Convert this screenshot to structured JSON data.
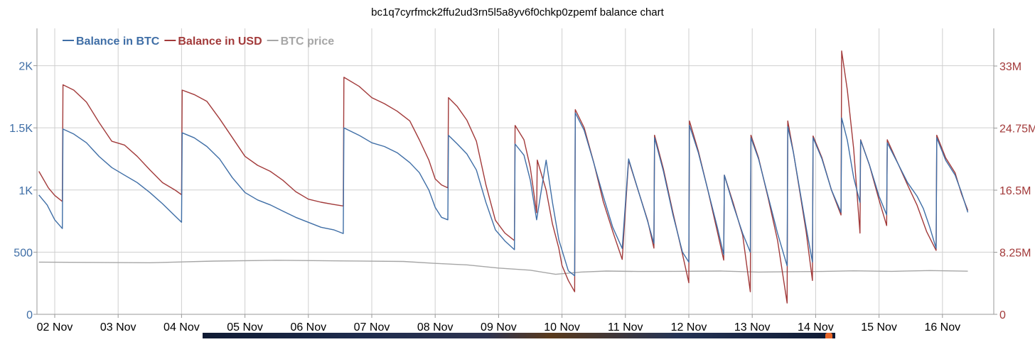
{
  "chart_data": {
    "type": "line",
    "title": "bc1q7cyrfmck2ffu2ud3rn5l5a8yv6f0chkp0zpemf balance chart",
    "x_ticks": [
      "02 Nov",
      "03 Nov",
      "04 Nov",
      "05 Nov",
      "06 Nov",
      "07 Nov",
      "08 Nov",
      "09 Nov",
      "10 Nov",
      "11 Nov",
      "12 Nov",
      "13 Nov",
      "14 Nov",
      "15 Nov",
      "16 Nov"
    ],
    "y_left": {
      "ticks": [
        "0",
        "500",
        "1K",
        "1.5K",
        "2K"
      ],
      "values": [
        0,
        500,
        1000,
        1500,
        2000
      ],
      "range": [
        0,
        2300
      ],
      "color": "#3f6ea6"
    },
    "y_right": {
      "ticks": [
        "0",
        "8.25M",
        "16.5M",
        "24.75M",
        "33M"
      ],
      "values": [
        0,
        8250000,
        16500000,
        24750000,
        33000000
      ],
      "range": [
        0,
        38000000
      ],
      "color": "#a23a3a"
    },
    "legend_placement": "top-left",
    "grid": true,
    "series": [
      {
        "name": "Balance in BTC",
        "axis": "left",
        "color": "#3f6ea6",
        "points": [
          [
            1.75,
            960
          ],
          [
            1.88,
            880
          ],
          [
            2.0,
            760
          ],
          [
            2.12,
            690
          ],
          [
            2.13,
            1490
          ],
          [
            2.3,
            1450
          ],
          [
            2.5,
            1380
          ],
          [
            2.7,
            1270
          ],
          [
            2.9,
            1180
          ],
          [
            3.1,
            1120
          ],
          [
            3.3,
            1060
          ],
          [
            3.5,
            980
          ],
          [
            3.7,
            890
          ],
          [
            3.9,
            790
          ],
          [
            4.0,
            740
          ],
          [
            4.01,
            1460
          ],
          [
            4.2,
            1420
          ],
          [
            4.4,
            1350
          ],
          [
            4.6,
            1250
          ],
          [
            4.8,
            1100
          ],
          [
            5.0,
            980
          ],
          [
            5.2,
            920
          ],
          [
            5.4,
            880
          ],
          [
            5.6,
            830
          ],
          [
            5.8,
            780
          ],
          [
            6.0,
            740
          ],
          [
            6.2,
            700
          ],
          [
            6.4,
            680
          ],
          [
            6.55,
            650
          ],
          [
            6.56,
            1500
          ],
          [
            6.8,
            1440
          ],
          [
            7.0,
            1380
          ],
          [
            7.2,
            1350
          ],
          [
            7.4,
            1300
          ],
          [
            7.6,
            1220
          ],
          [
            7.75,
            1140
          ],
          [
            7.9,
            1000
          ],
          [
            8.0,
            860
          ],
          [
            8.1,
            780
          ],
          [
            8.2,
            760
          ],
          [
            8.21,
            1440
          ],
          [
            8.35,
            1370
          ],
          [
            8.5,
            1290
          ],
          [
            8.65,
            1160
          ],
          [
            8.8,
            900
          ],
          [
            8.95,
            680
          ],
          [
            9.1,
            590
          ],
          [
            9.25,
            520
          ],
          [
            9.26,
            1370
          ],
          [
            9.4,
            1280
          ],
          [
            9.5,
            1080
          ],
          [
            9.6,
            760
          ],
          [
            9.75,
            1240
          ],
          [
            9.85,
            900
          ],
          [
            9.95,
            600
          ],
          [
            10.1,
            350
          ],
          [
            10.2,
            310
          ],
          [
            10.21,
            1620
          ],
          [
            10.35,
            1480
          ],
          [
            10.5,
            1220
          ],
          [
            10.65,
            950
          ],
          [
            10.8,
            700
          ],
          [
            10.95,
            530
          ],
          [
            11.05,
            1250
          ],
          [
            11.2,
            1000
          ],
          [
            11.35,
            750
          ],
          [
            11.45,
            570
          ],
          [
            11.46,
            1420
          ],
          [
            11.6,
            1150
          ],
          [
            11.75,
            800
          ],
          [
            11.9,
            500
          ],
          [
            12.0,
            420
          ],
          [
            12.01,
            1520
          ],
          [
            12.15,
            1300
          ],
          [
            12.3,
            1000
          ],
          [
            12.45,
            700
          ],
          [
            12.55,
            480
          ],
          [
            12.56,
            1120
          ],
          [
            12.7,
            880
          ],
          [
            12.85,
            650
          ],
          [
            12.97,
            500
          ],
          [
            12.98,
            1420
          ],
          [
            13.1,
            1250
          ],
          [
            13.25,
            950
          ],
          [
            13.4,
            650
          ],
          [
            13.55,
            390
          ],
          [
            13.56,
            1510
          ],
          [
            13.65,
            1300
          ],
          [
            13.75,
            1000
          ],
          [
            13.85,
            700
          ],
          [
            13.95,
            420
          ],
          [
            13.96,
            1420
          ],
          [
            14.1,
            1250
          ],
          [
            14.25,
            1000
          ],
          [
            14.4,
            820
          ],
          [
            14.41,
            1580
          ],
          [
            14.5,
            1400
          ],
          [
            14.6,
            1100
          ],
          [
            14.7,
            900
          ],
          [
            14.71,
            1400
          ],
          [
            14.85,
            1200
          ],
          [
            15.0,
            950
          ],
          [
            15.12,
            800
          ],
          [
            15.13,
            1380
          ],
          [
            15.3,
            1210
          ],
          [
            15.45,
            1060
          ],
          [
            15.6,
            950
          ],
          [
            15.7,
            850
          ],
          [
            15.8,
            700
          ],
          [
            15.9,
            530
          ],
          [
            15.91,
            1420
          ],
          [
            16.05,
            1240
          ],
          [
            16.2,
            1120
          ],
          [
            16.3,
            980
          ],
          [
            16.4,
            820
          ]
        ]
      },
      {
        "name": "Balance in USD",
        "axis": "right",
        "color": "#a23a3a",
        "points": [
          [
            1.75,
            19000000
          ],
          [
            1.9,
            16800000
          ],
          [
            2.0,
            15800000
          ],
          [
            2.12,
            15000000
          ],
          [
            2.13,
            30500000
          ],
          [
            2.3,
            29800000
          ],
          [
            2.5,
            28200000
          ],
          [
            2.7,
            25500000
          ],
          [
            2.9,
            23000000
          ],
          [
            3.1,
            22500000
          ],
          [
            3.3,
            21000000
          ],
          [
            3.5,
            19200000
          ],
          [
            3.7,
            17500000
          ],
          [
            3.9,
            16500000
          ],
          [
            4.0,
            15900000
          ],
          [
            4.01,
            29800000
          ],
          [
            4.2,
            29200000
          ],
          [
            4.4,
            28300000
          ],
          [
            4.6,
            26000000
          ],
          [
            4.8,
            23500000
          ],
          [
            5.0,
            21000000
          ],
          [
            5.2,
            19800000
          ],
          [
            5.4,
            19000000
          ],
          [
            5.6,
            17800000
          ],
          [
            5.8,
            16300000
          ],
          [
            6.0,
            15300000
          ],
          [
            6.2,
            14900000
          ],
          [
            6.4,
            14600000
          ],
          [
            6.55,
            14400000
          ],
          [
            6.56,
            31500000
          ],
          [
            6.8,
            30300000
          ],
          [
            7.0,
            28800000
          ],
          [
            7.2,
            28000000
          ],
          [
            7.4,
            27000000
          ],
          [
            7.6,
            25700000
          ],
          [
            7.75,
            23200000
          ],
          [
            7.9,
            20500000
          ],
          [
            8.0,
            18000000
          ],
          [
            8.1,
            17200000
          ],
          [
            8.2,
            16800000
          ],
          [
            8.21,
            28800000
          ],
          [
            8.35,
            27600000
          ],
          [
            8.5,
            25800000
          ],
          [
            8.65,
            23000000
          ],
          [
            8.8,
            17200000
          ],
          [
            8.95,
            12500000
          ],
          [
            9.1,
            10800000
          ],
          [
            9.25,
            9800000
          ],
          [
            9.26,
            25100000
          ],
          [
            9.4,
            23200000
          ],
          [
            9.5,
            19500000
          ],
          [
            9.6,
            13500000
          ],
          [
            9.61,
            20500000
          ],
          [
            9.75,
            16500000
          ],
          [
            9.85,
            12000000
          ],
          [
            9.95,
            8800000
          ],
          [
            10.0,
            6500000
          ],
          [
            10.1,
            4500000
          ],
          [
            10.2,
            3000000
          ],
          [
            10.21,
            27200000
          ],
          [
            10.35,
            24800000
          ],
          [
            10.5,
            20200000
          ],
          [
            10.65,
            15000000
          ],
          [
            10.8,
            11000000
          ],
          [
            10.95,
            7300000
          ],
          [
            11.05,
            20500000
          ],
          [
            11.2,
            16500000
          ],
          [
            11.35,
            12500000
          ],
          [
            11.45,
            8800000
          ],
          [
            11.46,
            23800000
          ],
          [
            11.6,
            19300000
          ],
          [
            11.75,
            13500000
          ],
          [
            11.9,
            8000000
          ],
          [
            12.0,
            4200000
          ],
          [
            12.01,
            25700000
          ],
          [
            12.15,
            21700000
          ],
          [
            12.3,
            16500000
          ],
          [
            12.45,
            11000000
          ],
          [
            12.55,
            7200000
          ],
          [
            12.56,
            18500000
          ],
          [
            12.7,
            14800000
          ],
          [
            12.85,
            10500000
          ],
          [
            12.97,
            3000000
          ],
          [
            12.98,
            23800000
          ],
          [
            13.1,
            20800000
          ],
          [
            13.25,
            15500000
          ],
          [
            13.4,
            9800000
          ],
          [
            13.55,
            1500000
          ],
          [
            13.56,
            25700000
          ],
          [
            13.65,
            21500000
          ],
          [
            13.75,
            16300000
          ],
          [
            13.85,
            11000000
          ],
          [
            13.95,
            4500000
          ],
          [
            13.96,
            23700000
          ],
          [
            14.1,
            20800000
          ],
          [
            14.25,
            16500000
          ],
          [
            14.4,
            13200000
          ],
          [
            14.41,
            35000000
          ],
          [
            14.5,
            29800000
          ],
          [
            14.6,
            22000000
          ],
          [
            14.7,
            10800000
          ],
          [
            14.71,
            23200000
          ],
          [
            14.85,
            19800000
          ],
          [
            15.0,
            15200000
          ],
          [
            15.12,
            11800000
          ],
          [
            15.13,
            23200000
          ],
          [
            15.3,
            20000000
          ],
          [
            15.45,
            17200000
          ],
          [
            15.6,
            14500000
          ],
          [
            15.75,
            11000000
          ],
          [
            15.9,
            8500000
          ],
          [
            15.91,
            23800000
          ],
          [
            16.05,
            20800000
          ],
          [
            16.2,
            18800000
          ],
          [
            16.3,
            16000000
          ],
          [
            16.4,
            13800000
          ]
        ]
      },
      {
        "name": "BTC price",
        "axis": "left",
        "color": "#a6a6a6",
        "points": [
          [
            1.75,
            420
          ],
          [
            2.5,
            418
          ],
          [
            3.5,
            415
          ],
          [
            4.5,
            428
          ],
          [
            5.5,
            435
          ],
          [
            6.5,
            430
          ],
          [
            7.5,
            425
          ],
          [
            8.0,
            410
          ],
          [
            8.5,
            398
          ],
          [
            9.0,
            372
          ],
          [
            9.5,
            355
          ],
          [
            9.9,
            322
          ],
          [
            10.3,
            340
          ],
          [
            10.7,
            348
          ],
          [
            11.2,
            345
          ],
          [
            11.8,
            346
          ],
          [
            12.5,
            348
          ],
          [
            13.1,
            340
          ],
          [
            13.6,
            343
          ],
          [
            14.1,
            345
          ],
          [
            14.6,
            350
          ],
          [
            15.2,
            346
          ],
          [
            15.8,
            352
          ],
          [
            16.4,
            347
          ]
        ]
      }
    ]
  }
}
